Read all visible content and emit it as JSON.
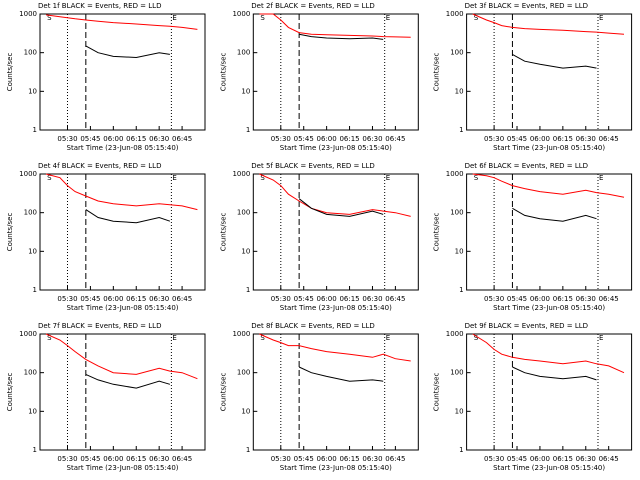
{
  "chart_data": [
    {
      "type": "line",
      "title": "Det 1f BLACK = Events, RED = LLD",
      "ylabel": "Counts/sec",
      "xlabel": "Start Time (23-Jun-08 05:15:40)",
      "log_y": true,
      "x": [
        "05:16",
        "05:25",
        "05:30",
        "05:35",
        "05:42",
        "05:50",
        "06:00",
        "06:15",
        "06:30",
        "06:37",
        "06:45",
        "06:55"
      ],
      "series": [
        {
          "color": "#ff0000",
          "values": [
            950,
            850,
            800,
            750,
            700,
            650,
            600,
            550,
            500,
            480,
            450,
            400
          ]
        },
        {
          "color": "#000000",
          "values": [
            null,
            null,
            null,
            null,
            150,
            100,
            80,
            75,
            100,
            90,
            null,
            null
          ]
        }
      ],
      "xlim": [
        "05:12",
        "07:00"
      ],
      "xticks": [
        "05:30",
        "05:45",
        "06:00",
        "06:15",
        "06:30",
        "06:45"
      ],
      "ylim": [
        1,
        1000
      ],
      "yticks": [
        1,
        10,
        100,
        1000
      ],
      "vlines": [
        {
          "x": "05:30",
          "style": "dotted"
        },
        {
          "x": "05:42",
          "style": "dashed"
        },
        {
          "x": "06:38",
          "style": "dotted"
        }
      ],
      "annotations": [
        {
          "text": "S",
          "x": "05:16"
        },
        {
          "text": "E",
          "x": "06:38"
        }
      ]
    },
    {
      "type": "line",
      "title": "Det 2f BLACK = Events, RED = LLD",
      "ylabel": "Counts/sec",
      "xlabel": "Start Time (23-Jun-08 05:15:40)",
      "log_y": true,
      "x": [
        "05:16",
        "05:25",
        "05:30",
        "05:35",
        "05:42",
        "05:50",
        "06:00",
        "06:15",
        "06:30",
        "06:37",
        "06:45",
        "06:55"
      ],
      "series": [
        {
          "color": "#ff0000",
          "values": [
            1000,
            1000,
            700,
            450,
            330,
            300,
            290,
            280,
            270,
            260,
            255,
            250
          ]
        },
        {
          "color": "#000000",
          "values": [
            null,
            null,
            null,
            null,
            300,
            260,
            240,
            230,
            240,
            220,
            null,
            null
          ]
        }
      ],
      "xlim": [
        "05:12",
        "07:00"
      ],
      "xticks": [
        "05:30",
        "05:45",
        "06:00",
        "06:15",
        "06:30",
        "06:45"
      ],
      "ylim": [
        1,
        1000
      ],
      "yticks": [
        1,
        10,
        100,
        1000
      ],
      "vlines": [
        {
          "x": "05:30",
          "style": "dotted"
        },
        {
          "x": "05:42",
          "style": "dashed"
        },
        {
          "x": "06:38",
          "style": "dotted"
        }
      ],
      "annotations": [
        {
          "text": "S",
          "x": "05:16"
        },
        {
          "text": "E",
          "x": "06:38"
        }
      ]
    },
    {
      "type": "line",
      "title": "Det 3f BLACK = Events, RED = LLD",
      "ylabel": "Counts/sec",
      "xlabel": "Start Time (23-Jun-08 05:15:40)",
      "log_y": true,
      "x": [
        "05:16",
        "05:25",
        "05:30",
        "05:35",
        "05:42",
        "05:50",
        "06:00",
        "06:15",
        "06:30",
        "06:37",
        "06:45",
        "06:55"
      ],
      "series": [
        {
          "color": "#ff0000",
          "values": [
            1000,
            700,
            600,
            500,
            450,
            420,
            400,
            380,
            350,
            340,
            320,
            300
          ]
        },
        {
          "color": "#000000",
          "values": [
            null,
            null,
            null,
            null,
            90,
            60,
            50,
            40,
            45,
            40,
            null,
            null
          ]
        }
      ],
      "xlim": [
        "05:12",
        "07:00"
      ],
      "xticks": [
        "05:30",
        "05:45",
        "06:00",
        "06:15",
        "06:30",
        "06:45"
      ],
      "ylim": [
        1,
        1000
      ],
      "yticks": [
        1,
        10,
        100,
        1000
      ],
      "vlines": [
        {
          "x": "05:30",
          "style": "dotted"
        },
        {
          "x": "05:42",
          "style": "dashed"
        },
        {
          "x": "06:38",
          "style": "dotted"
        }
      ],
      "annotations": [
        {
          "text": "S",
          "x": "05:16"
        },
        {
          "text": "E",
          "x": "06:38"
        }
      ]
    },
    {
      "type": "line",
      "title": "Det 4f BLACK = Events, RED = LLD",
      "ylabel": "Counts/sec",
      "xlabel": "Start Time (23-Jun-08 05:15:40)",
      "log_y": true,
      "x": [
        "05:16",
        "05:25",
        "05:30",
        "05:35",
        "05:42",
        "05:50",
        "06:00",
        "06:15",
        "06:30",
        "06:37",
        "06:45",
        "06:55"
      ],
      "series": [
        {
          "color": "#ff0000",
          "values": [
            1000,
            800,
            500,
            350,
            270,
            200,
            170,
            150,
            170,
            160,
            150,
            120
          ]
        },
        {
          "color": "#000000",
          "values": [
            null,
            null,
            null,
            null,
            120,
            75,
            60,
            55,
            75,
            60,
            null,
            null
          ]
        }
      ],
      "xlim": [
        "05:12",
        "07:00"
      ],
      "xticks": [
        "05:30",
        "05:45",
        "06:00",
        "06:15",
        "06:30",
        "06:45"
      ],
      "ylim": [
        1,
        1000
      ],
      "yticks": [
        1,
        10,
        100,
        1000
      ],
      "vlines": [
        {
          "x": "05:30",
          "style": "dotted"
        },
        {
          "x": "05:42",
          "style": "dashed"
        },
        {
          "x": "06:38",
          "style": "dotted"
        }
      ],
      "annotations": [
        {
          "text": "S",
          "x": "05:16"
        },
        {
          "text": "E",
          "x": "06:38"
        }
      ]
    },
    {
      "type": "line",
      "title": "Det 5f BLACK = Events, RED = LLD",
      "ylabel": "Counts/sec",
      "xlabel": "Start Time (23-Jun-08 05:15:40)",
      "log_y": true,
      "x": [
        "05:16",
        "05:25",
        "05:30",
        "05:35",
        "05:42",
        "05:50",
        "06:00",
        "06:15",
        "06:30",
        "06:37",
        "06:45",
        "06:55"
      ],
      "series": [
        {
          "color": "#ff0000",
          "values": [
            1000,
            700,
            500,
            300,
            200,
            130,
            100,
            90,
            120,
            110,
            100,
            80
          ]
        },
        {
          "color": "#000000",
          "values": [
            null,
            null,
            null,
            null,
            230,
            130,
            90,
            80,
            110,
            90,
            null,
            null
          ]
        }
      ],
      "xlim": [
        "05:12",
        "07:00"
      ],
      "xticks": [
        "05:30",
        "05:45",
        "06:00",
        "06:15",
        "06:30",
        "06:45"
      ],
      "ylim": [
        1,
        1000
      ],
      "yticks": [
        1,
        10,
        100,
        1000
      ],
      "vlines": [
        {
          "x": "05:30",
          "style": "dotted"
        },
        {
          "x": "05:42",
          "style": "dashed"
        },
        {
          "x": "06:38",
          "style": "dotted"
        }
      ],
      "annotations": [
        {
          "text": "S",
          "x": "05:16"
        },
        {
          "text": "E",
          "x": "06:38"
        }
      ]
    },
    {
      "type": "line",
      "title": "Det 6f BLACK = Events, RED = LLD",
      "ylabel": "Counts/sec",
      "xlabel": "Start Time (23-Jun-08 05:15:40)",
      "log_y": true,
      "x": [
        "05:16",
        "05:25",
        "05:30",
        "05:35",
        "05:42",
        "05:50",
        "06:00",
        "06:15",
        "06:30",
        "06:37",
        "06:45",
        "06:55"
      ],
      "series": [
        {
          "color": "#ff0000",
          "values": [
            1000,
            900,
            800,
            650,
            500,
            420,
            350,
            300,
            380,
            330,
            300,
            250
          ]
        },
        {
          "color": "#000000",
          "values": [
            null,
            null,
            null,
            null,
            130,
            85,
            70,
            60,
            85,
            70,
            null,
            null
          ]
        }
      ],
      "xlim": [
        "05:12",
        "07:00"
      ],
      "xticks": [
        "05:30",
        "05:45",
        "06:00",
        "06:15",
        "06:30",
        "06:45"
      ],
      "ylim": [
        1,
        1000
      ],
      "yticks": [
        1,
        10,
        100,
        1000
      ],
      "vlines": [
        {
          "x": "05:30",
          "style": "dotted"
        },
        {
          "x": "05:42",
          "style": "dashed"
        },
        {
          "x": "06:38",
          "style": "dotted"
        }
      ],
      "annotations": [
        {
          "text": "S",
          "x": "05:16"
        },
        {
          "text": "E",
          "x": "06:38"
        }
      ]
    },
    {
      "type": "line",
      "title": "Det 7f BLACK = Events, RED = LLD",
      "ylabel": "Counts/sec",
      "xlabel": "Start Time (23-Jun-08 05:15:40)",
      "log_y": true,
      "x": [
        "05:16",
        "05:25",
        "05:30",
        "05:35",
        "05:42",
        "05:50",
        "06:00",
        "06:15",
        "06:30",
        "06:37",
        "06:45",
        "06:55"
      ],
      "series": [
        {
          "color": "#ff0000",
          "values": [
            1000,
            700,
            500,
            350,
            220,
            150,
            100,
            90,
            130,
            110,
            100,
            70
          ]
        },
        {
          "color": "#000000",
          "values": [
            null,
            null,
            null,
            null,
            90,
            65,
            50,
            40,
            60,
            50,
            null,
            null
          ]
        }
      ],
      "xlim": [
        "05:12",
        "07:00"
      ],
      "xticks": [
        "05:30",
        "05:45",
        "06:00",
        "06:15",
        "06:30",
        "06:45"
      ],
      "ylim": [
        1,
        1000
      ],
      "yticks": [
        1,
        10,
        100,
        1000
      ],
      "vlines": [
        {
          "x": "05:30",
          "style": "dotted"
        },
        {
          "x": "05:42",
          "style": "dashed"
        },
        {
          "x": "06:38",
          "style": "dotted"
        }
      ],
      "annotations": [
        {
          "text": "S",
          "x": "05:16"
        },
        {
          "text": "E",
          "x": "06:38"
        }
      ]
    },
    {
      "type": "line",
      "title": "Det 8f BLACK = Events, RED = LLD",
      "ylabel": "Counts/sec",
      "xlabel": "Start Time (23-Jun-08 05:15:40)",
      "log_y": true,
      "x": [
        "05:16",
        "05:25",
        "05:30",
        "05:35",
        "05:42",
        "05:50",
        "06:00",
        "06:15",
        "06:30",
        "06:37",
        "06:45",
        "06:55"
      ],
      "series": [
        {
          "color": "#ff0000",
          "values": [
            1000,
            700,
            600,
            500,
            500,
            420,
            350,
            300,
            250,
            300,
            230,
            200
          ]
        },
        {
          "color": "#000000",
          "values": [
            null,
            null,
            null,
            null,
            140,
            100,
            80,
            60,
            65,
            60,
            null,
            null
          ]
        }
      ],
      "xlim": [
        "05:12",
        "07:00"
      ],
      "xticks": [
        "05:30",
        "05:45",
        "06:00",
        "06:15",
        "06:30",
        "06:45"
      ],
      "ylim": [
        1,
        1000
      ],
      "yticks": [
        1,
        10,
        100,
        1000
      ],
      "vlines": [
        {
          "x": "05:30",
          "style": "dotted"
        },
        {
          "x": "05:42",
          "style": "dashed"
        },
        {
          "x": "06:38",
          "style": "dotted"
        }
      ],
      "annotations": [
        {
          "text": "S",
          "x": "05:16"
        },
        {
          "text": "E",
          "x": "06:38"
        }
      ]
    },
    {
      "type": "line",
      "title": "Det 9f BLACK = Events, RED = LLD",
      "ylabel": "Counts/sec",
      "xlabel": "Start Time (23-Jun-08 05:15:40)",
      "log_y": true,
      "x": [
        "05:16",
        "05:25",
        "05:30",
        "05:35",
        "05:42",
        "05:50",
        "06:00",
        "06:15",
        "06:30",
        "06:37",
        "06:45",
        "06:55"
      ],
      "series": [
        {
          "color": "#ff0000",
          "values": [
            1000,
            600,
            400,
            300,
            250,
            220,
            200,
            170,
            200,
            170,
            150,
            100
          ]
        },
        {
          "color": "#000000",
          "values": [
            null,
            null,
            null,
            null,
            140,
            100,
            80,
            70,
            80,
            65,
            null,
            null
          ]
        }
      ],
      "xlim": [
        "05:12",
        "07:00"
      ],
      "xticks": [
        "05:30",
        "05:45",
        "06:00",
        "06:15",
        "06:30",
        "06:45"
      ],
      "ylim": [
        1,
        1000
      ],
      "yticks": [
        1,
        10,
        100,
        1000
      ],
      "vlines": [
        {
          "x": "05:30",
          "style": "dotted"
        },
        {
          "x": "05:42",
          "style": "dashed"
        },
        {
          "x": "06:38",
          "style": "dotted"
        }
      ],
      "annotations": [
        {
          "text": "S",
          "x": "05:16"
        },
        {
          "text": "E",
          "x": "06:38"
        }
      ]
    }
  ]
}
